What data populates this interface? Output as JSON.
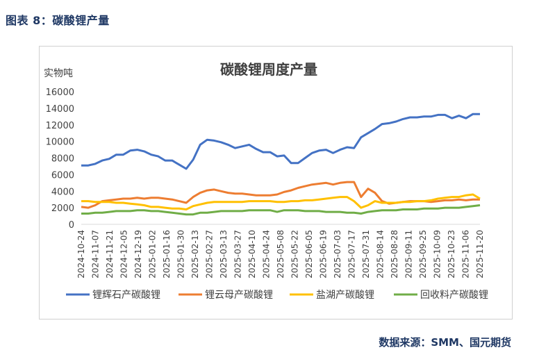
{
  "header": {
    "title": "图表 8：碳酸锂产量"
  },
  "source": "数据来源：SMM、国元期货",
  "chart_data": {
    "type": "line",
    "title": "碳酸锂周度产量",
    "ylabel": "实物吨",
    "xlabel": "",
    "ylim": [
      0,
      16000
    ],
    "yticks": [
      0,
      2000,
      4000,
      6000,
      8000,
      10000,
      12000,
      14000,
      16000
    ],
    "legend_position": "bottom",
    "xtick_labels": [
      "2024-10-24",
      "2024-11-07",
      "2024-11-21",
      "2024-12-05",
      "2024-12-19",
      "2025-01-02",
      "2025-01-16",
      "2025-01-30",
      "2025-02-13",
      "2025-02-27",
      "2025-03-13",
      "2025-03-27",
      "2025-04-10",
      "2025-04-24",
      "2025-05-08",
      "2025-05-22",
      "2025-06-05",
      "2025-06-19",
      "2025-07-03",
      "2025-07-17",
      "2025-07-31",
      "2025-08-14",
      "2025-08-28",
      "2025-09-11",
      "2025-09-25",
      "2025-10-09",
      "2025-10-23",
      "2025-11-06",
      "2025-11-20"
    ],
    "series": [
      {
        "name": "锂辉石产碳酸锂",
        "color": "#4472c4",
        "values": [
          7100,
          7100,
          7300,
          7700,
          7900,
          8400,
          8400,
          8900,
          9000,
          8800,
          8400,
          8200,
          7700,
          7700,
          7200,
          6700,
          7800,
          9600,
          10200,
          10100,
          9900,
          9600,
          9200,
          9400,
          9600,
          9100,
          8700,
          8700,
          8200,
          8300,
          7400,
          7400,
          8000,
          8600,
          8900,
          9000,
          8600,
          9000,
          9300,
          9200,
          10500,
          11000,
          11500,
          12100,
          12200,
          12400,
          12700,
          12900,
          12900,
          13000,
          13000,
          13200,
          13200,
          12800,
          13100,
          12800,
          13300,
          13300
        ]
      },
      {
        "name": "锂云母产碳酸锂",
        "color": "#ed7d31",
        "values": [
          2100,
          2000,
          2300,
          2800,
          2900,
          3000,
          3100,
          3100,
          3200,
          3100,
          3200,
          3200,
          3100,
          3000,
          2800,
          2600,
          3300,
          3800,
          4100,
          4200,
          4000,
          3800,
          3700,
          3700,
          3600,
          3500,
          3500,
          3500,
          3600,
          3900,
          4100,
          4400,
          4600,
          4800,
          4900,
          5000,
          4800,
          5000,
          5100,
          5100,
          3300,
          4300,
          3800,
          2800,
          2500,
          2600,
          2700,
          2800,
          2800,
          2800,
          2700,
          2800,
          2900,
          2900,
          3000,
          2900,
          3000,
          3000
        ]
      },
      {
        "name": "盐湖产碳酸锂",
        "color": "#ffc000",
        "values": [
          2800,
          2800,
          2700,
          2700,
          2700,
          2600,
          2600,
          2500,
          2400,
          2300,
          2100,
          2100,
          2000,
          1900,
          1900,
          1800,
          2200,
          2400,
          2600,
          2700,
          2700,
          2700,
          2700,
          2700,
          2800,
          2800,
          2800,
          2800,
          2700,
          2700,
          2800,
          2800,
          2900,
          2900,
          3000,
          3100,
          3200,
          3300,
          3300,
          2800,
          2000,
          2300,
          2800,
          2600,
          2600,
          2600,
          2700,
          2700,
          2800,
          2800,
          2900,
          3100,
          3200,
          3300,
          3300,
          3500,
          3600,
          3100
        ]
      },
      {
        "name": "回收料产碳酸锂",
        "color": "#70ad47",
        "values": [
          1300,
          1300,
          1400,
          1400,
          1500,
          1600,
          1600,
          1600,
          1700,
          1700,
          1600,
          1600,
          1500,
          1400,
          1300,
          1200,
          1200,
          1400,
          1400,
          1500,
          1600,
          1600,
          1600,
          1600,
          1700,
          1700,
          1700,
          1700,
          1500,
          1700,
          1700,
          1700,
          1600,
          1600,
          1600,
          1500,
          1500,
          1500,
          1400,
          1400,
          1300,
          1500,
          1600,
          1700,
          1700,
          1700,
          1800,
          1800,
          1800,
          1900,
          1900,
          1900,
          2000,
          2000,
          2000,
          2100,
          2200,
          2300
        ]
      }
    ]
  }
}
